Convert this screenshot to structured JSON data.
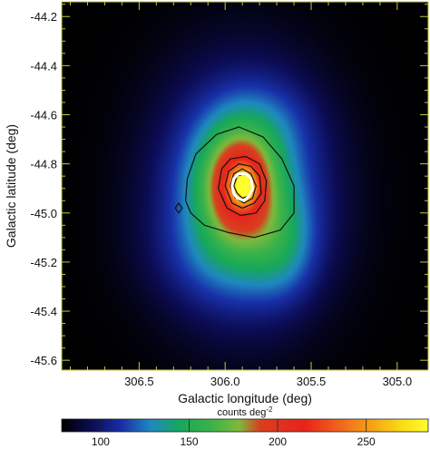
{
  "chart_data": {
    "type": "heatmap",
    "title": "",
    "xlabel": "Galactic longitude (deg)",
    "ylabel": "Galactic latitude (deg)",
    "xlim": [
      306.95,
      304.82
    ],
    "ylim": [
      -45.64,
      -44.14
    ],
    "x_reversed": true,
    "x_ticks": [
      306.5,
      306.0,
      305.5,
      305.0
    ],
    "x_tick_labels": [
      "306.5",
      "306.0",
      "305.5",
      "305.0"
    ],
    "y_ticks": [
      -44.2,
      -44.4,
      -44.6,
      -44.8,
      -45.0,
      -45.2,
      -45.4,
      -45.6
    ],
    "y_tick_labels": [
      "-44.2",
      "-44.4",
      "-44.6",
      "-44.8",
      "-45.0",
      "-45.2",
      "-45.4",
      "-45.6"
    ],
    "colorbar": {
      "title": "counts deg",
      "title_exponent": "-2",
      "range": [
        78,
        285
      ],
      "ticks": [
        100,
        150,
        200,
        250
      ],
      "tick_labels": [
        "100",
        "150",
        "200",
        "250"
      ]
    },
    "peak": {
      "l": 305.89,
      "b": -44.89,
      "value": 285
    },
    "background_level": 78,
    "emission_components": [
      {
        "l": 305.89,
        "b": -44.89,
        "sigma_l": 0.05,
        "sigma_b": 0.05,
        "amplitude": 75
      },
      {
        "l": 305.92,
        "b": -44.88,
        "sigma_l": 0.15,
        "sigma_b": 0.16,
        "amplitude": 85
      },
      {
        "l": 305.9,
        "b": -44.92,
        "sigma_l": 0.33,
        "sigma_b": 0.33,
        "amplitude": 65
      },
      {
        "l": 305.66,
        "b": -45.13,
        "sigma_l": 0.13,
        "sigma_b": 0.15,
        "amplitude": 22
      },
      {
        "l": 305.98,
        "b": -45.18,
        "sigma_l": 0.3,
        "sigma_b": 0.14,
        "amplitude": 14
      },
      {
        "l": 305.72,
        "b": -44.62,
        "sigma_l": 0.18,
        "sigma_b": 0.12,
        "amplitude": 10
      }
    ],
    "contours": [
      {
        "color": "#111111",
        "points": [
          [
            306.23,
            -44.95
          ],
          [
            306.22,
            -44.86
          ],
          [
            306.17,
            -44.76
          ],
          [
            306.05,
            -44.68
          ],
          [
            305.92,
            -44.65
          ],
          [
            305.78,
            -44.69
          ],
          [
            305.67,
            -44.78
          ],
          [
            305.6,
            -44.89
          ],
          [
            305.6,
            -45.0
          ],
          [
            305.68,
            -45.07
          ],
          [
            305.83,
            -45.1
          ],
          [
            305.98,
            -45.08
          ],
          [
            306.12,
            -45.05
          ],
          [
            306.2,
            -45.0
          ]
        ]
      },
      {
        "color": "#111111",
        "points": [
          [
            306.04,
            -44.9
          ],
          [
            306.02,
            -44.82
          ],
          [
            305.97,
            -44.78
          ],
          [
            305.88,
            -44.77
          ],
          [
            305.8,
            -44.8
          ],
          [
            305.76,
            -44.87
          ],
          [
            305.77,
            -44.95
          ],
          [
            305.82,
            -45.0
          ],
          [
            305.91,
            -45.01
          ],
          [
            305.99,
            -44.98
          ]
        ]
      },
      {
        "color": "#111111",
        "points": [
          [
            306.0,
            -44.89
          ],
          [
            305.98,
            -44.83
          ],
          [
            305.92,
            -44.8
          ],
          [
            305.85,
            -44.81
          ],
          [
            305.8,
            -44.85
          ],
          [
            305.79,
            -44.92
          ],
          [
            305.83,
            -44.96
          ],
          [
            305.9,
            -44.98
          ],
          [
            305.96,
            -44.96
          ]
        ]
      },
      {
        "color": "#111111",
        "points": [
          [
            305.97,
            -44.89
          ],
          [
            305.95,
            -44.84
          ],
          [
            305.9,
            -44.82
          ],
          [
            305.85,
            -44.84
          ],
          [
            305.82,
            -44.89
          ],
          [
            305.84,
            -44.94
          ],
          [
            305.89,
            -44.96
          ],
          [
            305.94,
            -44.94
          ]
        ]
      },
      {
        "color": "#111111",
        "points": [
          [
            305.95,
            -44.89
          ],
          [
            305.93,
            -44.85
          ],
          [
            305.89,
            -44.84
          ],
          [
            305.85,
            -44.86
          ],
          [
            305.84,
            -44.9
          ],
          [
            305.86,
            -44.93
          ],
          [
            305.9,
            -44.94
          ],
          [
            305.93,
            -44.92
          ]
        ]
      },
      {
        "color": "#ffffff",
        "points": [
          [
            305.96,
            -44.89
          ],
          [
            305.95,
            -44.86
          ],
          [
            305.92,
            -44.84
          ],
          [
            305.88,
            -44.84
          ],
          [
            305.85,
            -44.86
          ],
          [
            305.84,
            -44.9
          ],
          [
            305.86,
            -44.93
          ],
          [
            305.89,
            -44.95
          ],
          [
            305.93,
            -44.94
          ],
          [
            305.95,
            -44.92
          ]
        ]
      },
      {
        "color": "#111111",
        "points": [
          [
            306.27,
            -44.96
          ],
          [
            306.29,
            -44.98
          ],
          [
            306.27,
            -45.0
          ],
          [
            306.25,
            -44.98
          ]
        ]
      }
    ]
  },
  "colormap": {
    "stops": [
      {
        "v": 78,
        "color": "#000000"
      },
      {
        "v": 95,
        "color": "#0c0c55"
      },
      {
        "v": 112,
        "color": "#1830a8"
      },
      {
        "v": 128,
        "color": "#1f88c0"
      },
      {
        "v": 145,
        "color": "#17a85a"
      },
      {
        "v": 163,
        "color": "#3cb34a"
      },
      {
        "v": 178,
        "color": "#7fba3c"
      },
      {
        "v": 190,
        "color": "#d8401f"
      },
      {
        "v": 215,
        "color": "#e8231c"
      },
      {
        "v": 245,
        "color": "#f5871a"
      },
      {
        "v": 270,
        "color": "#fadc14"
      },
      {
        "v": 285,
        "color": "#ffff30"
      }
    ]
  },
  "frame_color": "#c8c83c"
}
